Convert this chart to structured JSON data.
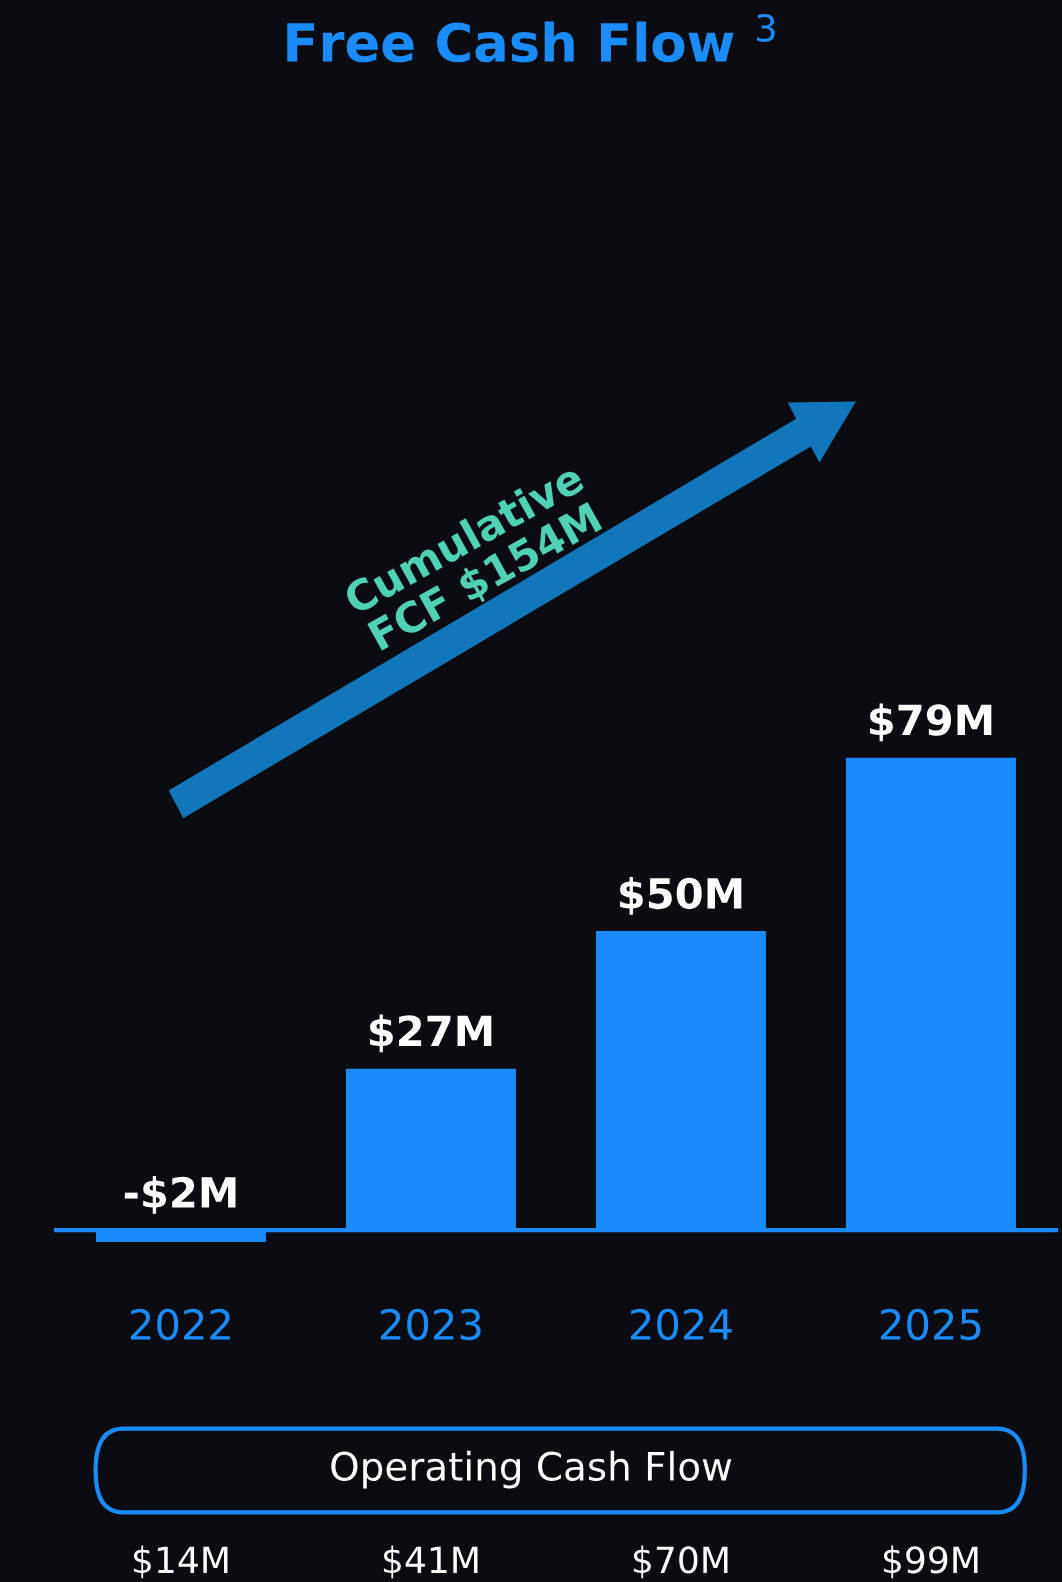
{
  "chart_data": {
    "type": "bar",
    "title": "Free Cash Flow $^{3}$",
    "categories": [
      "2022",
      "2023",
      "2024",
      "2025"
    ],
    "values": [
      -2,
      27,
      50,
      79
    ],
    "value_labels": [
      "-$2M",
      "$27M",
      "$50M",
      "$79M"
    ],
    "color": "#1a8cff",
    "annotations": [
      "Cumulative\nFCF $154M",
      "Operating Cash Flow",
      "$14M",
      "$41M",
      "$70M",
      "$99M"
    ],
    "grid": false,
    "legend": false
  }
}
